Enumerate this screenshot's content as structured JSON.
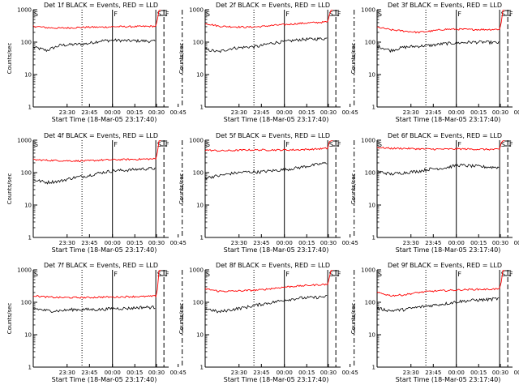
{
  "chart_data": {
    "type": "line",
    "yscale": "log",
    "ylim": [
      1,
      1000
    ],
    "ytick_labels": [
      "1",
      "10",
      "100",
      "1000"
    ],
    "ylabel": "Counts/sec",
    "xlabel": "Start Time (18-Mar-05 23:17:40)",
    "xtick_labels": [
      "23:30",
      "23:45",
      "00:00",
      "00:15",
      "00:30",
      "00:45"
    ],
    "marker_labels": [
      "S",
      "F",
      "S",
      "F",
      "A"
    ],
    "series_names": [
      "BLACK = Events",
      "RED = LLD"
    ],
    "series_colors": {
      "events": "#000000",
      "lld": "#ff0000"
    },
    "panels": [
      {
        "title": "Det 1f BLACK = Events, RED = LLD",
        "events": [
          70,
          55,
          80,
          85,
          90,
          110,
          115,
          110,
          110,
          105
        ],
        "lld": [
          310,
          280,
          270,
          280,
          290,
          290,
          300,
          300,
          305,
          310
        ]
      },
      {
        "title": "Det 2f BLACK = Events, RED = LLD",
        "events": [
          60,
          50,
          65,
          70,
          75,
          95,
          105,
          120,
          125,
          130
        ],
        "lld": [
          380,
          310,
          300,
          290,
          300,
          330,
          350,
          380,
          400,
          420
        ]
      },
      {
        "title": "Det 3f BLACK = Events, RED = LLD",
        "events": [
          75,
          55,
          70,
          75,
          80,
          90,
          95,
          100,
          100,
          95
        ],
        "lld": [
          290,
          240,
          220,
          200,
          220,
          250,
          250,
          245,
          245,
          250
        ]
      },
      {
        "title": "Det 4f BLACK = Events, RED = LLD",
        "events": [
          60,
          50,
          55,
          70,
          80,
          100,
          115,
          120,
          130,
          135
        ],
        "lld": [
          250,
          240,
          235,
          230,
          230,
          245,
          250,
          255,
          260,
          265
        ]
      },
      {
        "title": "Det 5f BLACK = Events, RED = LLD",
        "events": [
          70,
          80,
          95,
          105,
          105,
          115,
          125,
          145,
          170,
          200
        ],
        "lld": [
          500,
          470,
          480,
          500,
          500,
          500,
          500,
          510,
          530,
          560
        ]
      },
      {
        "title": "Det 6f BLACK = Events, RED = LLD",
        "events": [
          110,
          90,
          100,
          110,
          130,
          140,
          170,
          160,
          150,
          145
        ],
        "lld": [
          600,
          560,
          560,
          540,
          530,
          530,
          540,
          530,
          520,
          520
        ]
      },
      {
        "title": "Det 7f BLACK = Events, RED = LLD",
        "events": [
          65,
          55,
          55,
          60,
          60,
          60,
          65,
          65,
          70,
          70
        ],
        "lld": [
          160,
          145,
          140,
          140,
          140,
          145,
          145,
          150,
          150,
          155
        ]
      },
      {
        "title": "Det 8f BLACK = Events, RED = LLD",
        "events": [
          65,
          50,
          60,
          70,
          85,
          100,
          120,
          135,
          140,
          150
        ],
        "lld": [
          260,
          220,
          220,
          230,
          240,
          270,
          300,
          320,
          340,
          360
        ]
      },
      {
        "title": "Det 9f BLACK = Events, RED = LLD",
        "events": [
          65,
          55,
          60,
          70,
          80,
          90,
          105,
          115,
          120,
          130
        ],
        "lld": [
          200,
          160,
          170,
          200,
          220,
          230,
          240,
          250,
          250,
          260
        ]
      }
    ]
  }
}
